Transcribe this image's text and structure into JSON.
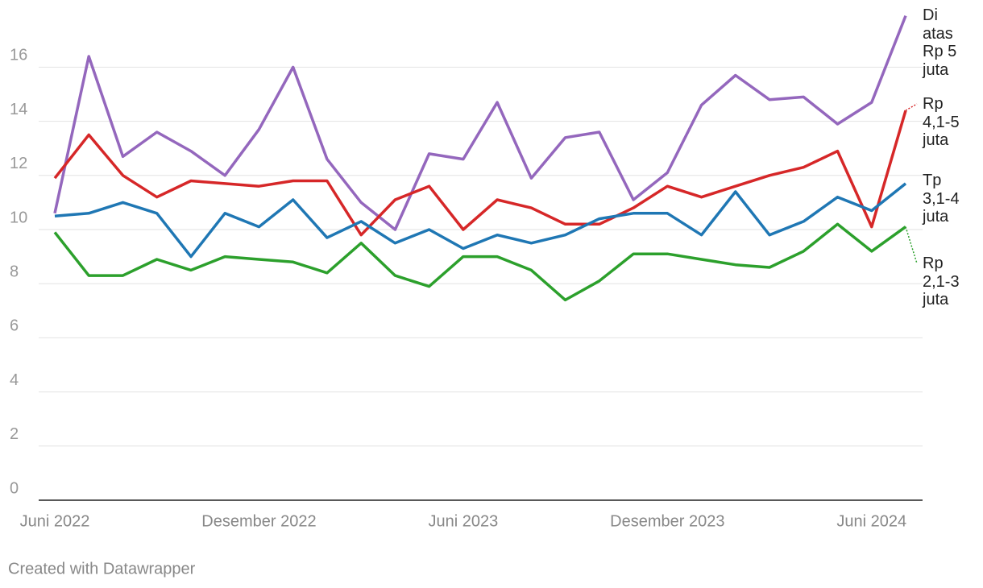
{
  "chart_data": {
    "type": "line",
    "categories": [
      "Juni 2022",
      null,
      null,
      null,
      null,
      null,
      "Desember 2022",
      null,
      null,
      null,
      null,
      null,
      "Juni 2023",
      null,
      null,
      null,
      null,
      null,
      "Desember 2023",
      null,
      null,
      null,
      null,
      null,
      "Juni 2024",
      null
    ],
    "series": [
      {
        "name": "Di atas Rp 5 juta",
        "color": "#9467bd",
        "values": [
          10.6,
          16.4,
          12.7,
          13.6,
          12.9,
          12.0,
          13.7,
          16.0,
          12.6,
          11.0,
          10.0,
          12.8,
          12.6,
          14.7,
          11.9,
          13.4,
          13.6,
          11.1,
          12.1,
          14.6,
          15.7,
          14.8,
          14.9,
          13.9,
          14.7,
          17.9
        ]
      },
      {
        "name": "Rp 4,1-5 juta",
        "color": "#d62728",
        "values": [
          11.9,
          13.5,
          12.0,
          11.2,
          11.8,
          11.7,
          11.6,
          11.8,
          11.8,
          9.8,
          11.1,
          11.6,
          10.0,
          11.1,
          10.8,
          10.2,
          10.2,
          10.8,
          11.6,
          11.2,
          11.6,
          12.0,
          12.3,
          12.9,
          10.1,
          14.4
        ]
      },
      {
        "name": "Tp 3,1-4 juta",
        "color": "#1f77b4",
        "values": [
          10.5,
          10.6,
          11.0,
          10.6,
          9.0,
          10.6,
          10.1,
          11.1,
          9.7,
          10.3,
          9.5,
          10.0,
          9.3,
          9.8,
          9.5,
          9.8,
          10.4,
          10.6,
          10.6,
          9.8,
          11.4,
          9.8,
          10.3,
          11.2,
          10.7,
          11.7
        ]
      },
      {
        "name": "Rp 2,1-3 juta",
        "color": "#2ca02c",
        "values": [
          9.9,
          8.3,
          8.3,
          8.9,
          8.5,
          9.0,
          8.9,
          8.8,
          8.4,
          9.5,
          8.3,
          7.9,
          9.0,
          9.0,
          8.5,
          7.4,
          8.1,
          9.1,
          9.1,
          8.9,
          8.7,
          8.6,
          9.2,
          10.2,
          9.2,
          10.1
        ]
      }
    ],
    "ylim": [
      0,
      18
    ],
    "yticks": [
      0,
      2,
      4,
      6,
      8,
      10,
      12,
      14,
      16
    ],
    "grid": true,
    "footer": "Created with Datawrapper"
  }
}
